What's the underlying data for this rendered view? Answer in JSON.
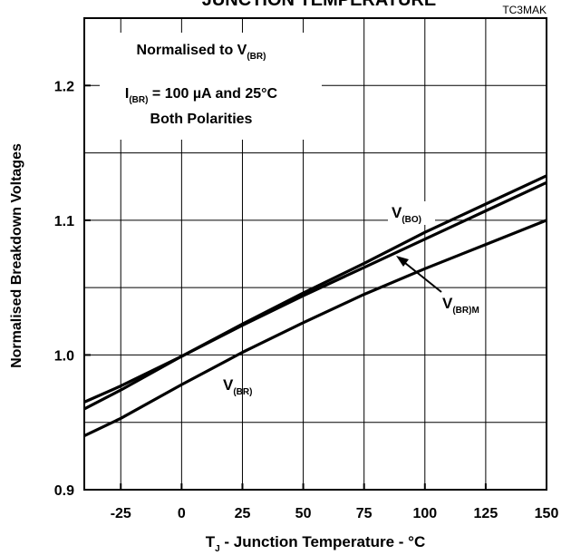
{
  "chart_data": {
    "type": "line",
    "title": "JUNCTION TEMPERATURE",
    "code": "TC3MAK",
    "xlabel": {
      "main": "T",
      "sub": "J",
      "rest": " - Junction Temperature - °C"
    },
    "ylabel": "Normalised Breakdown Voltages",
    "xlim": [
      -40,
      150
    ],
    "ylim": [
      0.9,
      1.25
    ],
    "x_ticks": [
      -25,
      0,
      25,
      50,
      75,
      100,
      125,
      150
    ],
    "y_ticks": [
      0.9,
      1.0,
      1.1,
      1.2
    ],
    "y_tick_labels": [
      "0.9",
      "1.0",
      "1.1",
      "1.2"
    ],
    "x_gridlines": [
      -25,
      0,
      25,
      50,
      75,
      100,
      125
    ],
    "y_gridlines": [
      0.95,
      1.0,
      1.05,
      1.1,
      1.15,
      1.2
    ],
    "grid": true,
    "annotation_lines": [
      {
        "main": "Normalised to V",
        "sub": "(BR)",
        "rest": ""
      },
      {
        "main": "I",
        "sub": "(BR)",
        "rest": " = 100 µA and 25°C"
      },
      {
        "main": "Both Polarities",
        "sub": "",
        "rest": ""
      }
    ],
    "series": [
      {
        "name_main": "V",
        "name_sub": "(BO)",
        "x": [
          -40,
          -25,
          0,
          25,
          50,
          75,
          100,
          125,
          150
        ],
        "y": [
          0.965,
          0.977,
          0.999,
          1.023,
          1.046,
          1.068,
          1.091,
          1.112,
          1.133
        ]
      },
      {
        "name_main": "V",
        "name_sub": "(BR)M",
        "x": [
          -40,
          -25,
          0,
          25,
          50,
          75,
          100,
          125,
          150
        ],
        "y": [
          0.96,
          0.974,
          0.999,
          1.022,
          1.044,
          1.065,
          1.086,
          1.107,
          1.128
        ]
      },
      {
        "name_main": "V",
        "name_sub": "(BR)",
        "x": [
          -40,
          -25,
          0,
          25,
          50,
          75,
          100,
          125,
          150
        ],
        "y": [
          0.94,
          0.953,
          0.978,
          1.002,
          1.024,
          1.045,
          1.064,
          1.082,
          1.1
        ]
      }
    ]
  }
}
